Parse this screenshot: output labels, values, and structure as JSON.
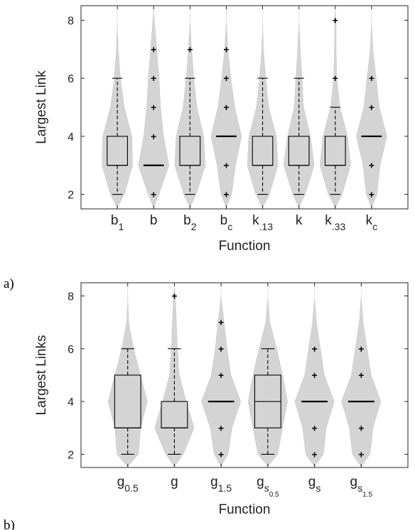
{
  "chart_data": [
    {
      "type": "violin-box",
      "panel_label": "a)",
      "xlabel": "Function",
      "ylabel": "Largest Link",
      "ylim": [
        1.5,
        8.5
      ],
      "yticks": [
        "2",
        "4",
        "6",
        "8"
      ],
      "categories": [
        {
          "base": "b",
          "sub": "1"
        },
        {
          "base": "b",
          "sub": ""
        },
        {
          "base": "b",
          "sub": "2"
        },
        {
          "base": "b",
          "sub": "c"
        },
        {
          "base": "k",
          "sub": ".13"
        },
        {
          "base": "k",
          "sub": ""
        },
        {
          "base": "k",
          "sub": ".33"
        },
        {
          "base": "k",
          "sub": "c"
        }
      ],
      "boxes": [
        {
          "q1": 3,
          "median": 3,
          "q3": 4,
          "whisker_low": 2,
          "whisker_high": 6,
          "outliers": []
        },
        {
          "q1": 3,
          "median": 3,
          "q3": 3,
          "whisker_low": 3,
          "whisker_high": 3,
          "outliers": [
            2,
            4,
            5,
            6,
            7
          ]
        },
        {
          "q1": 3,
          "median": 3,
          "q3": 4,
          "whisker_low": 2,
          "whisker_high": 6,
          "outliers": [
            7
          ]
        },
        {
          "q1": 4,
          "median": 4,
          "q3": 4,
          "whisker_low": 4,
          "whisker_high": 4,
          "outliers": [
            2,
            3,
            5,
            6,
            7
          ]
        },
        {
          "q1": 3,
          "median": 3,
          "q3": 4,
          "whisker_low": 2,
          "whisker_high": 6,
          "outliers": []
        },
        {
          "q1": 3,
          "median": 3,
          "q3": 4,
          "whisker_low": 2,
          "whisker_high": 6,
          "outliers": []
        },
        {
          "q1": 3,
          "median": 3,
          "q3": 4,
          "whisker_low": 2,
          "whisker_high": 5,
          "outliers": [
            6,
            8
          ]
        },
        {
          "q1": 4,
          "median": 4,
          "q3": 4,
          "whisker_low": 4,
          "whisker_high": 4,
          "outliers": [
            2,
            3,
            5,
            6
          ]
        }
      ],
      "violin_color": "#d4d4d4"
    },
    {
      "type": "violin-box",
      "panel_label": "b)",
      "xlabel": "Function",
      "ylabel": "Largest Links",
      "ylim": [
        1.5,
        8.5
      ],
      "yticks": [
        "2",
        "4",
        "6",
        "8"
      ],
      "categories": [
        {
          "base": "g",
          "sub": "0.5"
        },
        {
          "base": "g",
          "sub": ""
        },
        {
          "base": "g",
          "sub": "1.5"
        },
        {
          "base": "g",
          "sub": "s",
          "subsub": "0.5"
        },
        {
          "base": "g",
          "sub": "s"
        },
        {
          "base": "g",
          "sub": "s",
          "subsub": "1.5"
        }
      ],
      "boxes": [
        {
          "q1": 3,
          "median": 3,
          "q3": 5,
          "whisker_low": 2,
          "whisker_high": 6,
          "outliers": []
        },
        {
          "q1": 3,
          "median": 3,
          "q3": 4,
          "whisker_low": 2,
          "whisker_high": 6,
          "outliers": [
            8
          ]
        },
        {
          "q1": 4,
          "median": 4,
          "q3": 4,
          "whisker_low": 4,
          "whisker_high": 4,
          "outliers": [
            2,
            3,
            5,
            6,
            7
          ]
        },
        {
          "q1": 3,
          "median": 4,
          "q3": 5,
          "whisker_low": 2,
          "whisker_high": 6,
          "outliers": []
        },
        {
          "q1": 4,
          "median": 4,
          "q3": 4,
          "whisker_low": 4,
          "whisker_high": 4,
          "outliers": [
            2,
            3,
            5,
            6
          ]
        },
        {
          "q1": 4,
          "median": 4,
          "q3": 4,
          "whisker_low": 4,
          "whisker_high": 4,
          "outliers": [
            2,
            3,
            5,
            6
          ]
        }
      ],
      "violin_color": "#d4d4d4"
    }
  ]
}
